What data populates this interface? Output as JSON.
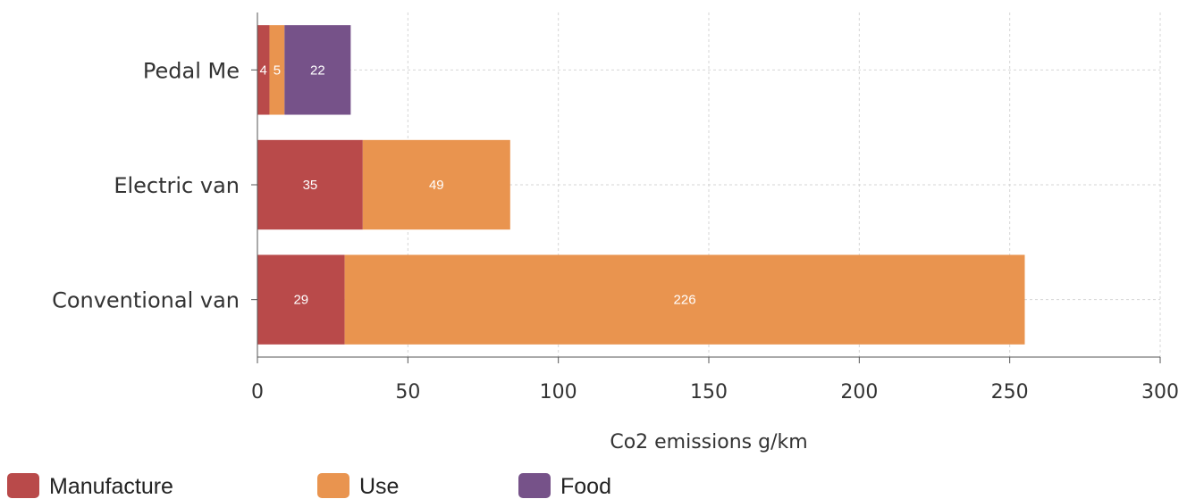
{
  "chart_data": {
    "type": "bar",
    "orientation": "horizontal",
    "stacked": true,
    "categories": [
      "Pedal Me",
      "Electric van",
      "Conventional van"
    ],
    "series": [
      {
        "name": "Manufacture",
        "color": "#b94a4a",
        "values": [
          4,
          35,
          29
        ]
      },
      {
        "name": "Use",
        "color": "#e9944f",
        "values": [
          5,
          49,
          226
        ]
      },
      {
        "name": "Food",
        "color": "#765289",
        "values": [
          22,
          0,
          0
        ]
      }
    ],
    "xlabel": "Co2 emissions g/km",
    "ylabel": "",
    "xlim": [
      0,
      300
    ],
    "xticks": [
      0,
      50,
      100,
      150,
      200,
      250,
      300
    ],
    "grid": true,
    "legend_position": "bottom-left"
  }
}
